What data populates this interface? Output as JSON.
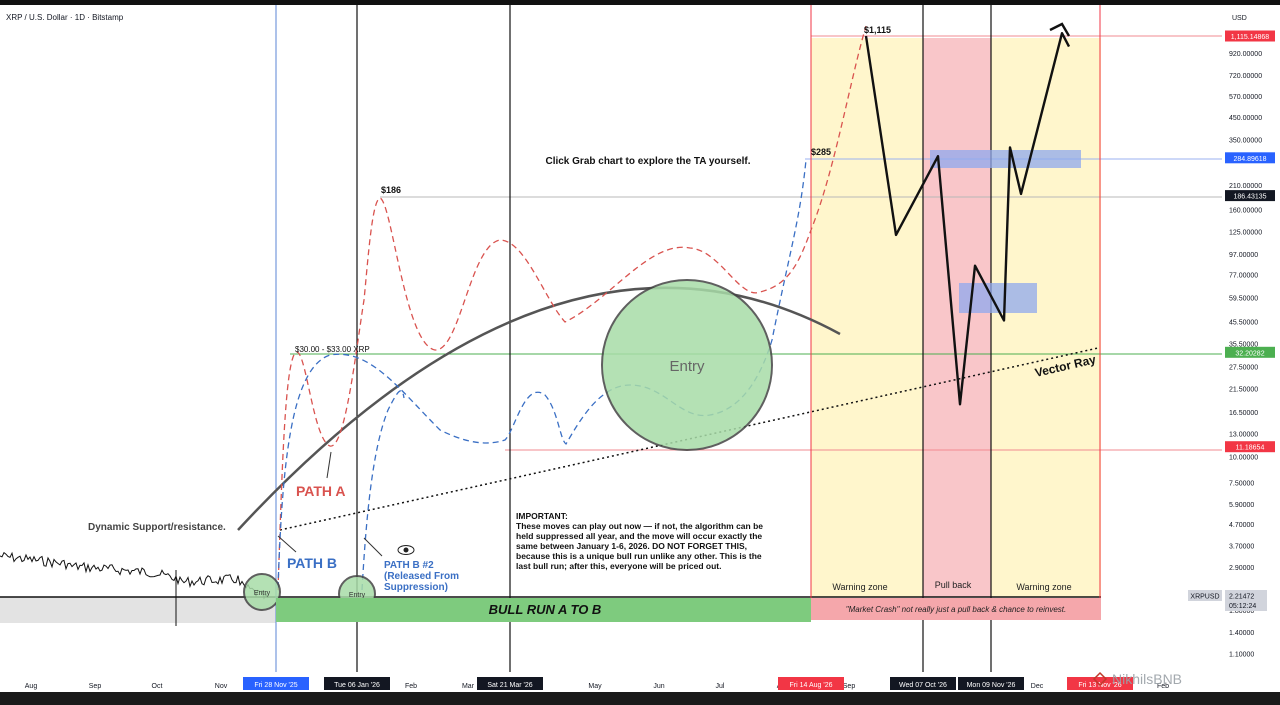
{
  "header": {
    "symbol_title": "XRP / U.S. Dollar · 1D · Bitstamp",
    "currency": "USD"
  },
  "chart_data": {
    "type": "line",
    "title": "XRP / U.S. Dollar · 1D · Bitstamp",
    "y_scale": "log",
    "ylim": [
      1.0,
      1300
    ],
    "price_ticks": [
      {
        "label": "920.00000",
        "value": 920
      },
      {
        "label": "720.00000",
        "value": 720
      },
      {
        "label": "570.00000",
        "value": 570
      },
      {
        "label": "450.00000",
        "value": 450
      },
      {
        "label": "350.00000",
        "value": 350
      },
      {
        "label": "210.00000",
        "value": 210
      },
      {
        "label": "160.00000",
        "value": 160
      },
      {
        "label": "125.00000",
        "value": 125
      },
      {
        "label": "97.00000",
        "value": 97
      },
      {
        "label": "77.00000",
        "value": 77
      },
      {
        "label": "59.50000",
        "value": 59.5
      },
      {
        "label": "45.50000",
        "value": 45.5
      },
      {
        "label": "35.50000",
        "value": 35.5
      },
      {
        "label": "27.50000",
        "value": 27.5
      },
      {
        "label": "21.50000",
        "value": 21.5
      },
      {
        "label": "16.50000",
        "value": 16.5
      },
      {
        "label": "13.00000",
        "value": 13
      },
      {
        "label": "10.00000",
        "value": 10
      },
      {
        "label": "7.50000",
        "value": 7.5
      },
      {
        "label": "5.90000",
        "value": 5.9
      },
      {
        "label": "4.70000",
        "value": 4.7
      },
      {
        "label": "3.70000",
        "value": 3.7
      },
      {
        "label": "2.90000",
        "value": 2.9
      },
      {
        "label": "1.80000",
        "value": 1.8
      },
      {
        "label": "1.40000",
        "value": 1.4
      },
      {
        "label": "1.10000",
        "value": 1.1
      }
    ],
    "price_badges": [
      {
        "label": "1,115.14868",
        "value": 1115.14868,
        "color": "#f23645"
      },
      {
        "label": "284.89618",
        "value": 284.89618,
        "color": "#2962ff"
      },
      {
        "label": "186.43135",
        "value": 186.43135,
        "color": "#131722"
      },
      {
        "label": "32.20282",
        "value": 32.20282,
        "color": "#4caf50"
      },
      {
        "label": "11.18654",
        "value": 11.18654,
        "color": "#f23645"
      }
    ],
    "current_price": {
      "symbol": "XRPUSD",
      "value": "2.21472",
      "countdown": "05:12:24"
    },
    "time_labels": [
      "Aug",
      "Sep",
      "Oct",
      "Nov",
      "Feb",
      "Mar",
      "May",
      "Jun",
      "Jul",
      "Au",
      "Sep",
      "Dec",
      "Feb"
    ],
    "date_badges": [
      {
        "label": "Fri 28 Nov '25",
        "color": "#2962ff"
      },
      {
        "label": "Tue 06 Jan '26",
        "color": "#131722"
      },
      {
        "label": "Sat 21 Mar '26",
        "color": "#131722"
      },
      {
        "label": "Fri 14 Aug '26",
        "color": "#f23645"
      },
      {
        "label": "Wed 07 Oct '26",
        "color": "#131722"
      },
      {
        "label": "Mon 09 Nov '26",
        "color": "#131722"
      },
      {
        "label": "Fri 13 Nov '26",
        "color": "#f23645"
      }
    ],
    "price_levels": [
      "$1,115",
      "$285",
      "$186",
      "$30.00 - $33.00 XRP"
    ],
    "annotations": {
      "grab_chart": "Click Grab chart to explore the TA yourself.",
      "path_a": "PATH A",
      "path_b": "PATH B",
      "path_b2_line1": "PATH B #2",
      "path_b2_line2": "(Released From",
      "path_b2_line3": "Suppression)",
      "dynamic_support": "Dynamic Support/resistance.",
      "entry_big": "Entry",
      "entry_small": "Entry",
      "vector_ray": "Vector Ray",
      "important_title": "IMPORTANT:",
      "important_lines": [
        "These moves can play out now — if not, the algorithm can be",
        "held suppressed all year, and the move will occur exactly the",
        "same between January 1-6, 2026. DO NOT FORGET THIS,",
        "because this is a unique bull run unlike any other. This is the",
        "last bull run; after this, everyone will be priced out."
      ],
      "warning_zone_1": "Warning zone",
      "pull_back": "Pull back",
      "warning_zone_2": "Warning zone",
      "bull_run": "BULL RUN A TO B",
      "market_crash": "\"Market Crash\" not really just a pull back & chance to reinvest.",
      "watermark": "NikhilsBNB"
    },
    "projection_main": [
      1115,
      120,
      290,
      18,
      85,
      46,
      320,
      190,
      1150,
      990
    ],
    "colors": {
      "path_a": "#d9534f",
      "path_b": "#3a6fc4",
      "warning_zone": "#fff6cc",
      "pull_back_zone": "#f9c6c9",
      "bull_run_bar": "#7ecb7e",
      "crash_bar": "#f5a7ab",
      "entry_fill": "#a8dca8",
      "target_box": "#8fa8ee"
    }
  }
}
